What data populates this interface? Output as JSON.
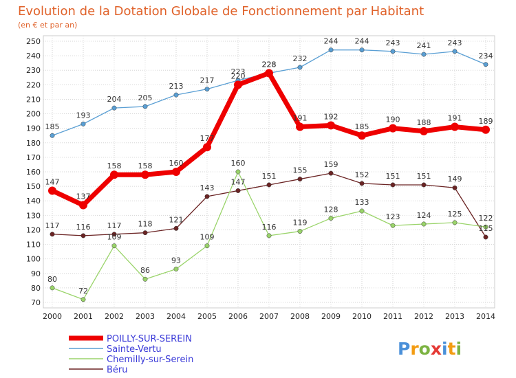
{
  "chart_data": {
    "type": "line",
    "title": "Evolution de la Dotation Globale de Fonctionnement par Habitant",
    "subtitle": "(en € et par an)",
    "xlabel": "",
    "ylabel": "",
    "ylim": [
      70,
      250
    ],
    "ytick_step": 10,
    "grid": true,
    "legend_position": "bottom-left",
    "x": [
      "2000",
      "2001",
      "2002",
      "2003",
      "2004",
      "2005",
      "2006",
      "2007",
      "2008",
      "2009",
      "2010",
      "2011",
      "2012",
      "2013",
      "2014"
    ],
    "series": [
      {
        "name": "POILLY-SUR-SEREIN",
        "color": "#ee0000",
        "values": [
          147,
          137,
          158,
          158,
          160,
          177,
          220,
          228,
          191,
          192,
          185,
          190,
          188,
          191,
          189
        ]
      },
      {
        "name": "Sainte-Vertu",
        "color": "#5a9fd4",
        "values": [
          185,
          193,
          204,
          205,
          213,
          217,
          223,
          228,
          232,
          244,
          244,
          243,
          241,
          243,
          234
        ]
      },
      {
        "name": "Chemilly-sur-Serein",
        "color": "#9ad46a",
        "values": [
          80,
          72,
          109,
          86,
          93,
          109,
          160,
          116,
          119,
          128,
          133,
          123,
          124,
          125,
          122
        ]
      },
      {
        "name": "Béru",
        "color": "#6b2424",
        "values": [
          117,
          116,
          117,
          118,
          121,
          143,
          147,
          151,
          155,
          159,
          152,
          151,
          151,
          149,
          115
        ]
      }
    ]
  },
  "logo": {
    "letters": [
      "P",
      "r",
      "o",
      "x",
      "i",
      "t",
      "i"
    ],
    "colors": [
      "#4a90d9",
      "#f39c12",
      "#7cb342",
      "#e53935",
      "#4a90d9",
      "#f39c12",
      "#7cb342"
    ]
  }
}
